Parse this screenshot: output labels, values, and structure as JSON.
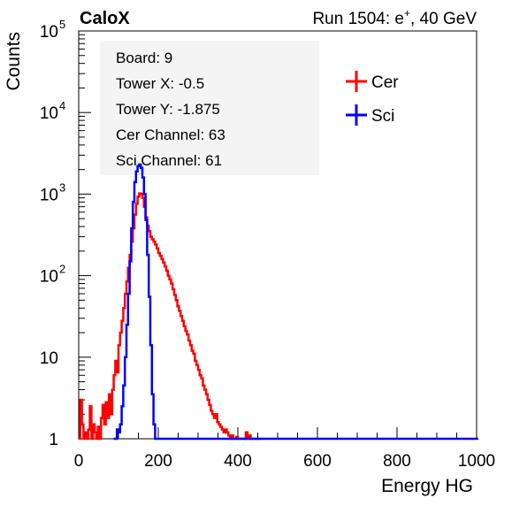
{
  "header": {
    "experiment": "CaloX",
    "run_prefix": "Run 1504: e",
    "run_sup": "+",
    "run_suffix": ", 40 GeV"
  },
  "info_box": [
    "Board: 9",
    "Tower X: -0.5",
    "Tower Y: -1.875",
    "Cer Channel: 63",
    "Sci Channel: 61"
  ],
  "chart_data": {
    "type": "line",
    "xlabel": "Energy HG",
    "ylabel": "Counts",
    "xlim": [
      0,
      1000
    ],
    "ylim": [
      1,
      100000
    ],
    "yscale": "log",
    "x_ticks": [
      0,
      200,
      400,
      600,
      800,
      1000
    ],
    "y_ticks": [
      1,
      10,
      100,
      1000,
      10000,
      100000
    ],
    "y_tick_labels": [
      {
        "base": "1",
        "exp": ""
      },
      {
        "base": "10",
        "exp": ""
      },
      {
        "base": "10",
        "exp": "2"
      },
      {
        "base": "10",
        "exp": "3"
      },
      {
        "base": "10",
        "exp": "4"
      },
      {
        "base": "10",
        "exp": "5"
      }
    ],
    "legend_position": "top-right",
    "series": [
      {
        "name": "Cer",
        "color": "#ff0000",
        "points": [
          [
            0,
            1.0
          ],
          [
            4,
            3.0
          ],
          [
            8,
            1.5
          ],
          [
            12,
            1.0
          ],
          [
            16,
            1.2
          ],
          [
            20,
            1.0
          ],
          [
            24,
            1.3
          ],
          [
            28,
            2.5
          ],
          [
            32,
            1.0
          ],
          [
            36,
            1.5
          ],
          [
            40,
            1.2
          ],
          [
            44,
            1.0
          ],
          [
            48,
            1.4
          ],
          [
            52,
            1.0
          ],
          [
            56,
            1.8
          ],
          [
            60,
            2.6
          ],
          [
            64,
            1.5
          ],
          [
            68,
            2.8
          ],
          [
            72,
            1.8
          ],
          [
            76,
            3.5
          ],
          [
            80,
            2.0
          ],
          [
            84,
            4.0
          ],
          [
            88,
            6.0
          ],
          [
            92,
            9.0
          ],
          [
            96,
            6.5
          ],
          [
            100,
            14
          ],
          [
            104,
            20
          ],
          [
            108,
            28
          ],
          [
            112,
            40
          ],
          [
            116,
            60
          ],
          [
            120,
            85
          ],
          [
            124,
            125
          ],
          [
            128,
            180
          ],
          [
            132,
            260
          ],
          [
            136,
            380
          ],
          [
            140,
            560
          ],
          [
            144,
            760
          ],
          [
            148,
            930
          ],
          [
            152,
            1020
          ],
          [
            156,
            1000
          ],
          [
            160,
            900
          ],
          [
            164,
            700
          ],
          [
            168,
            520
          ],
          [
            172,
            410
          ],
          [
            176,
            350
          ],
          [
            180,
            300
          ],
          [
            184,
            280
          ],
          [
            188,
            260
          ],
          [
            192,
            240
          ],
          [
            196,
            215
          ],
          [
            200,
            190
          ],
          [
            204,
            175
          ],
          [
            208,
            160
          ],
          [
            212,
            145
          ],
          [
            216,
            130
          ],
          [
            220,
            115
          ],
          [
            224,
            100
          ],
          [
            228,
            90
          ],
          [
            232,
            80
          ],
          [
            236,
            68
          ],
          [
            240,
            58
          ],
          [
            244,
            50
          ],
          [
            248,
            42
          ],
          [
            252,
            37
          ],
          [
            256,
            32
          ],
          [
            260,
            28
          ],
          [
            264,
            24
          ],
          [
            268,
            21
          ],
          [
            272,
            19
          ],
          [
            276,
            16
          ],
          [
            280,
            14
          ],
          [
            284,
            12
          ],
          [
            288,
            11
          ],
          [
            292,
            9
          ],
          [
            296,
            8
          ],
          [
            300,
            7
          ],
          [
            304,
            6
          ],
          [
            308,
            5.5
          ],
          [
            312,
            4.5
          ],
          [
            316,
            4
          ],
          [
            320,
            3.5
          ],
          [
            324,
            3
          ],
          [
            328,
            2.6
          ],
          [
            332,
            2.2
          ],
          [
            336,
            2
          ],
          [
            340,
            1.8
          ],
          [
            344,
            2
          ],
          [
            348,
            1.6
          ],
          [
            352,
            1.5
          ],
          [
            356,
            1.4
          ],
          [
            360,
            1.3
          ],
          [
            364,
            1.2
          ],
          [
            368,
            1.3
          ],
          [
            372,
            1.2
          ],
          [
            376,
            1.1
          ],
          [
            380,
            1.0
          ],
          [
            384,
            1.1
          ],
          [
            388,
            1.0
          ],
          [
            392,
            1.0
          ],
          [
            396,
            1.05
          ],
          [
            400,
            1.0
          ],
          [
            404,
            1.0
          ],
          [
            408,
            1.0
          ],
          [
            412,
            1.0
          ],
          [
            416,
            1.0
          ],
          [
            420,
            1.2
          ],
          [
            424,
            1.0
          ],
          [
            428,
            1.1
          ],
          [
            432,
            1.0
          ],
          [
            436,
            1.0
          ],
          [
            440,
            1.0
          ],
          [
            444,
            1.0
          ],
          [
            448,
            1.0
          ],
          [
            452,
            1.0
          ]
        ]
      },
      {
        "name": "Sci",
        "color": "#0000ff",
        "points": [
          [
            88,
            1.0
          ],
          [
            92,
            1.0
          ],
          [
            96,
            1.3
          ],
          [
            100,
            1.2
          ],
          [
            104,
            1.5
          ],
          [
            108,
            2.5
          ],
          [
            112,
            4.5
          ],
          [
            116,
            10
          ],
          [
            120,
            25
          ],
          [
            124,
            60
          ],
          [
            128,
            150
          ],
          [
            132,
            380
          ],
          [
            136,
            800
          ],
          [
            140,
            1400
          ],
          [
            144,
            1900
          ],
          [
            148,
            2200
          ],
          [
            152,
            2300
          ],
          [
            156,
            2100
          ],
          [
            160,
            1600
          ],
          [
            164,
            1000
          ],
          [
            168,
            480
          ],
          [
            172,
            180
          ],
          [
            176,
            55
          ],
          [
            180,
            14
          ],
          [
            184,
            3.5
          ],
          [
            188,
            1.5
          ],
          [
            192,
            1.0
          ],
          [
            196,
            1.0
          ],
          [
            1000,
            1.0
          ]
        ]
      }
    ]
  }
}
